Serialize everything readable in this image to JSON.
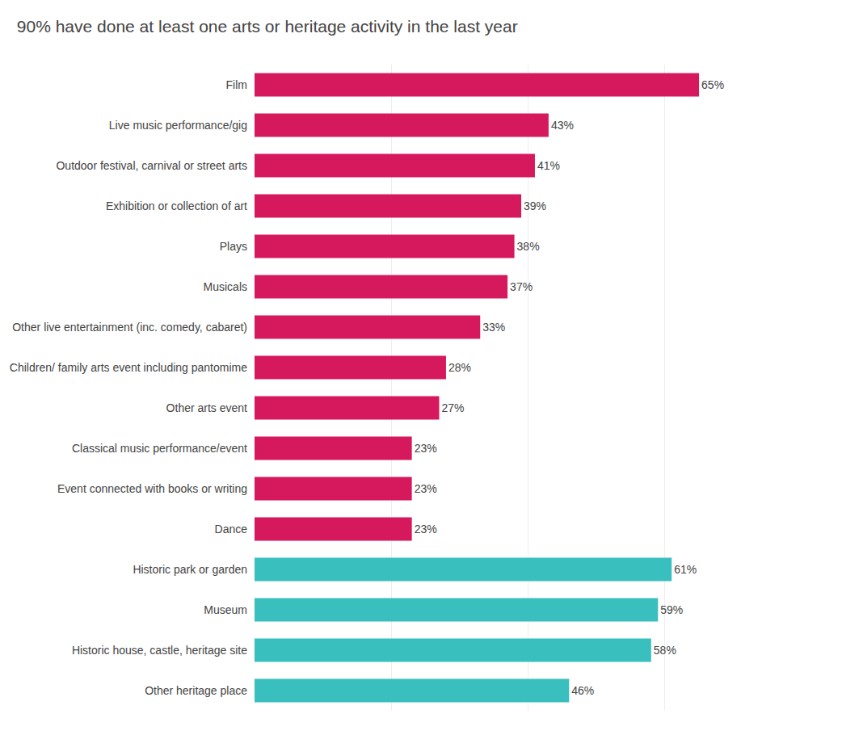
{
  "chart_data": {
    "type": "bar",
    "orientation": "horizontal",
    "title": "90% have done at least one arts or heritage activity in the last year",
    "categories": [
      "Film",
      "Live music performance/gig",
      "Outdoor festival, carnival or street arts",
      "Exhibition or collection of art",
      "Plays",
      "Musicals",
      "Other live entertainment (inc. comedy, cabaret)",
      "Children/ family arts event including pantomime",
      "Other arts event",
      "Classical music performance/event",
      "Event connected with books or writing",
      "Dance",
      "Historic park or garden",
      "Museum",
      "Historic house, castle, heritage site",
      "Other heritage place"
    ],
    "values": [
      65,
      43,
      41,
      39,
      38,
      37,
      33,
      28,
      27,
      23,
      23,
      23,
      61,
      59,
      58,
      46
    ],
    "value_labels": [
      "65%",
      "43%",
      "41%",
      "39%",
      "38%",
      "37%",
      "33%",
      "28%",
      "27%",
      "23%",
      "23%",
      "23%",
      "61%",
      "59%",
      "58%",
      "46%"
    ],
    "colors": [
      "#D6185D",
      "#D6185D",
      "#D6185D",
      "#D6185D",
      "#D6185D",
      "#D6185D",
      "#D6185D",
      "#D6185D",
      "#D6185D",
      "#D6185D",
      "#D6185D",
      "#D6185D",
      "#3ABFBF",
      "#3ABFBF",
      "#3ABFBF",
      "#3ABFBF"
    ],
    "data_labels": true,
    "xlim": [
      0,
      80
    ],
    "xticks": [
      0,
      20,
      40,
      60,
      80
    ],
    "grid": true,
    "tick_labels": "y"
  }
}
